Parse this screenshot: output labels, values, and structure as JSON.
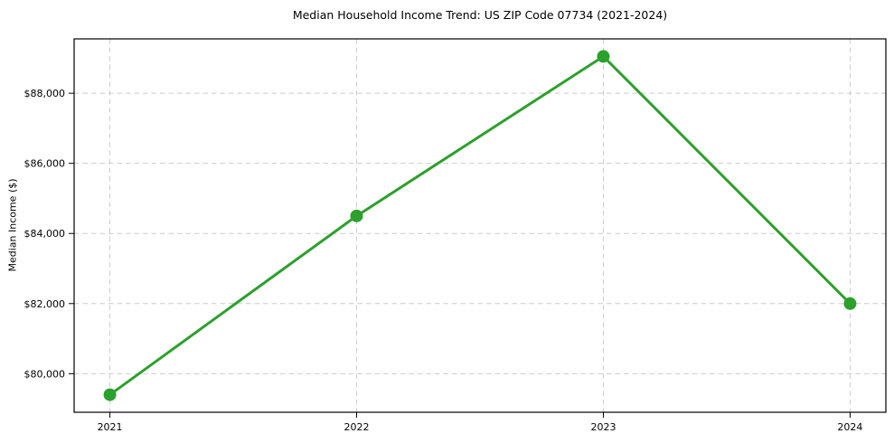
{
  "figure": {
    "background": "#ffffff",
    "title": "Median Household Income Trend: US ZIP Code 07734 (2021-2024)"
  },
  "chart_data": {
    "type": "line",
    "title": "Median Household Income Trend: US ZIP Code 07734 (2021-2024)",
    "xlabel": "",
    "ylabel": "Median Income ($)",
    "categories": [
      2021,
      2022,
      2023,
      2024
    ],
    "values": [
      79400,
      84500,
      89050,
      82000
    ],
    "x": [
      2021,
      2022,
      2023,
      2024
    ],
    "xlim": [
      2020.855,
      2024.145
    ],
    "ylim": [
      78900,
      89550
    ],
    "yticks": [
      80000,
      82000,
      84000,
      86000,
      88000
    ],
    "ytick_labels": [
      "$80,000",
      "$82,000",
      "$84,000",
      "$86,000",
      "$88,000"
    ],
    "xtick_labels": [
      "2021",
      "2022",
      "2023",
      "2024"
    ],
    "grid": true,
    "legend": false,
    "line_color": "#2ca02c",
    "marker_color": "#2ca02c",
    "grid_color": "#cccccc",
    "spine_color": "#000000",
    "tick_color": "#000000",
    "line_width": 3,
    "marker_radius": 7
  }
}
